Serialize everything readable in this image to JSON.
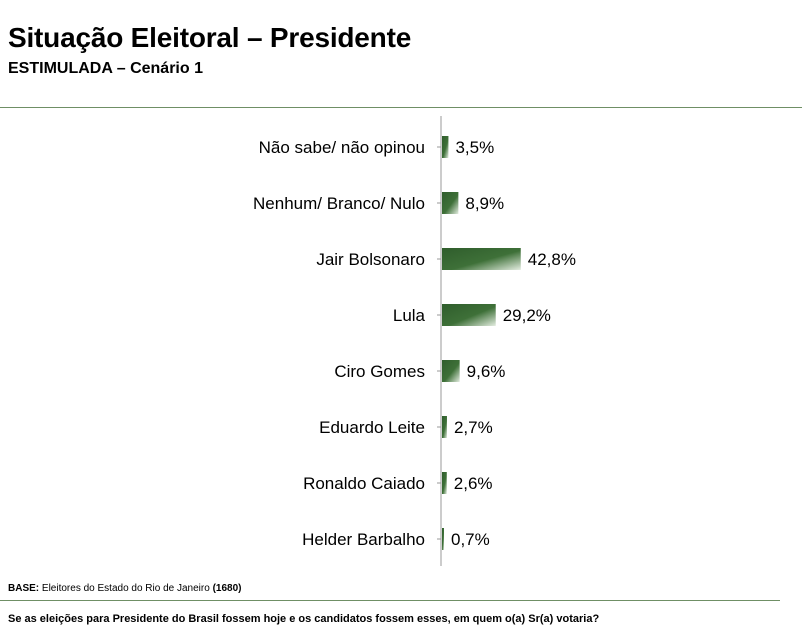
{
  "header": {
    "title": "Situação Eleitoral – Presidente",
    "subtitle": "ESTIMULADA – Cenário 1"
  },
  "footer": {
    "base_label": "BASE:",
    "base_text": "Eleitores do Estado do Rio de Janeiro",
    "base_count": "(1680)",
    "question": "Se as eleições para Presidente do Brasil fossem hoje e os candidatos fossem esses, em quem o(a) Sr(a) votaria?"
  },
  "colors": {
    "bar_dark": "#2f5d2c",
    "bar_light": "#e4ede1",
    "axis": "#999999",
    "rule": "#6f8f65"
  },
  "chart_data": {
    "type": "bar",
    "orientation": "horizontal",
    "categories": [
      "Não sabe/ não opinou",
      "Nenhum/ Branco/ Nulo",
      "Jair Bolsonaro",
      "Lula",
      "Ciro Gomes",
      "Eduardo Leite",
      "Ronaldo Caiado",
      "Helder Barbalho"
    ],
    "values": [
      3.5,
      8.9,
      42.8,
      29.2,
      9.6,
      2.7,
      2.6,
      0.7
    ],
    "value_labels": [
      "3,5%",
      "8,9%",
      "42,8%",
      "29,2%",
      "9,6%",
      "2,7%",
      "2,6%",
      "0,7%"
    ],
    "xlim": [
      0,
      100
    ],
    "grid": false,
    "legend": "none"
  }
}
